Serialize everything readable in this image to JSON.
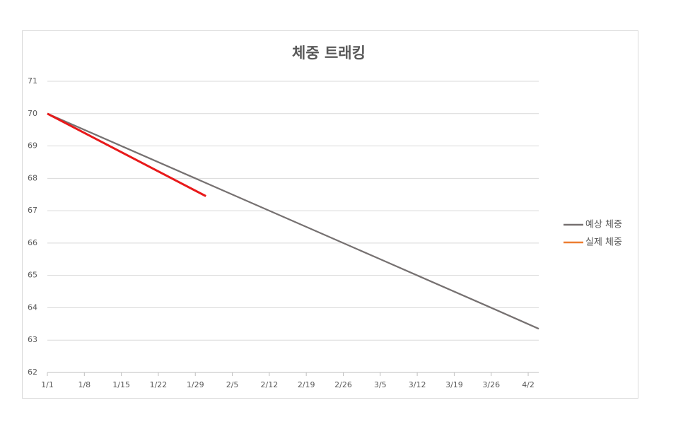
{
  "chart_data": {
    "type": "line",
    "title": "체중 트래킹",
    "series": [
      {
        "name": "예상 체중",
        "color": "#767171",
        "x": [
          0,
          7,
          14,
          21,
          28,
          35,
          42,
          49,
          56,
          63,
          70,
          77,
          84,
          93
        ],
        "values": [
          70,
          69.5,
          69,
          68.5,
          68,
          67.5,
          67,
          66.5,
          66,
          65.5,
          65,
          64.5,
          64,
          63.35
        ]
      },
      {
        "name": "실제 체중",
        "color": "#ed7d31",
        "line_color": "#e8191a",
        "x": [
          0,
          30
        ],
        "values": [
          70,
          67.45
        ]
      }
    ],
    "xlim": [
      0,
      93
    ],
    "xticks": [
      {
        "value": 0,
        "label": "1/1"
      },
      {
        "value": 7,
        "label": "1/8"
      },
      {
        "value": 14,
        "label": "1/15"
      },
      {
        "value": 21,
        "label": "1/22"
      },
      {
        "value": 28,
        "label": "1/29"
      },
      {
        "value": 35,
        "label": "2/5"
      },
      {
        "value": 42,
        "label": "2/12"
      },
      {
        "value": 49,
        "label": "2/19"
      },
      {
        "value": 56,
        "label": "2/26"
      },
      {
        "value": 63,
        "label": "3/5"
      },
      {
        "value": 70,
        "label": "3/12"
      },
      {
        "value": 77,
        "label": "3/19"
      },
      {
        "value": 84,
        "label": "3/26"
      },
      {
        "value": 91,
        "label": "4/2"
      }
    ],
    "ylim": [
      62,
      71
    ],
    "yticks": [
      62,
      63,
      64,
      65,
      66,
      67,
      68,
      69,
      70,
      71
    ],
    "grid": true,
    "legend": "right"
  }
}
